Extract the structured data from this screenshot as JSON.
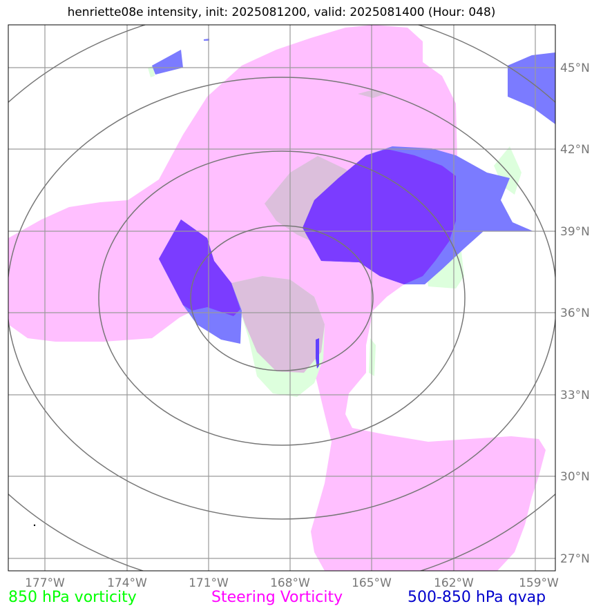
{
  "title": "henriette08e intensity, init: 2025081200, valid: 2025081400 (Hour: 048)",
  "x_ticks": [
    "177°W",
    "174°W",
    "171°W",
    "168°W",
    "165°W",
    "162°W",
    "159°W"
  ],
  "y_ticks": [
    "45°N",
    "42°N",
    "39°N",
    "36°N",
    "33°N",
    "30°N",
    "27°N"
  ],
  "legend": [
    {
      "label": "850 hPa vorticity",
      "color": "#00ff00"
    },
    {
      "label": "Steering Vorticity",
      "color": "#ff00ff"
    },
    {
      "label": "500-850 hPa qvap",
      "color": "#0000cc"
    }
  ],
  "layer_colors": {
    "vorticity_850": "#ddffdd",
    "steering_vorticity": "#ffbfff",
    "overlap_gray": "#dcbfdc",
    "qvap_blue": "#7b7bff",
    "qvap_purple": "#7b3cff"
  }
}
